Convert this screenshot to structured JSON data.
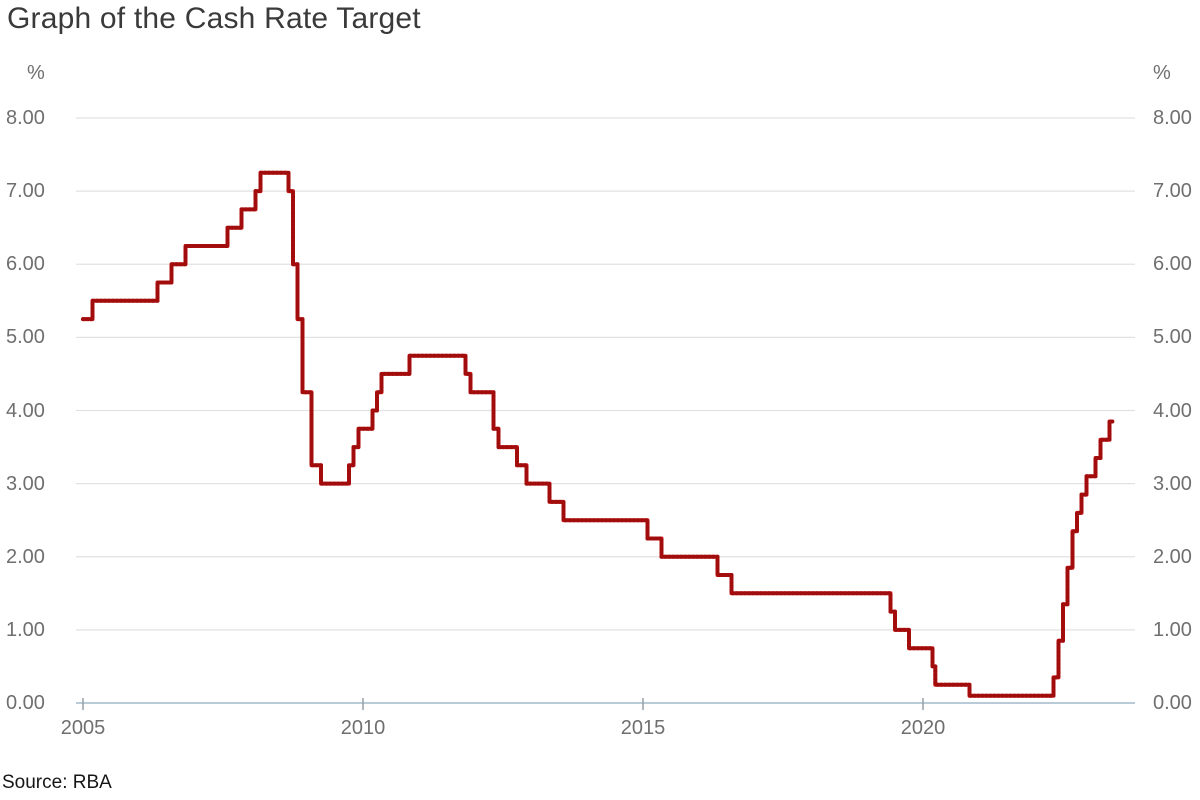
{
  "page": {
    "title": "Graph of the Cash Rate Target",
    "source": "Source: RBA"
  },
  "chart_data": {
    "type": "line",
    "title": "Graph of the Cash Rate Target",
    "subtitle": "",
    "interpolation": "step-after",
    "grid": "horizontal",
    "legend": "none",
    "colors": {
      "line": "#cb1515",
      "line_dots": "#9a0c0c",
      "grid": "#e2e2e2",
      "axis": "#b9cbd6",
      "tick": "#93a1a8",
      "tick_label": "#6f6f6f",
      "title": "#3a3a3a",
      "source": "#161616",
      "background": "#ffffff"
    },
    "y_axis": {
      "unit": "%",
      "tick_values": [
        8,
        7,
        6,
        5,
        4,
        3,
        2,
        1,
        0
      ],
      "tick_labels": [
        "8.00",
        "7.00",
        "6.00",
        "5.00",
        "4.00",
        "3.00",
        "2.00",
        "1.00",
        "0.00"
      ],
      "range": [
        0,
        8
      ],
      "sides": [
        "left",
        "right"
      ]
    },
    "x_axis": {
      "tick_values": [
        2005,
        2010,
        2015,
        2020
      ],
      "tick_labels": [
        "2005",
        "2010",
        "2015",
        "2020"
      ],
      "range": [
        2005.0,
        2023.8
      ]
    },
    "series": [
      {
        "name": "Cash Rate Target",
        "unit": "%",
        "x_end": 2023.38,
        "points": [
          [
            2005.0,
            5.25
          ],
          [
            2005.17,
            5.5
          ],
          [
            2006.33,
            5.75
          ],
          [
            2006.58,
            6.0
          ],
          [
            2006.83,
            6.25
          ],
          [
            2007.58,
            6.5
          ],
          [
            2007.83,
            6.75
          ],
          [
            2008.08,
            7.0
          ],
          [
            2008.17,
            7.25
          ],
          [
            2008.67,
            7.0
          ],
          [
            2008.75,
            6.0
          ],
          [
            2008.83,
            5.25
          ],
          [
            2008.92,
            4.25
          ],
          [
            2009.08,
            3.25
          ],
          [
            2009.25,
            3.0
          ],
          [
            2009.75,
            3.25
          ],
          [
            2009.83,
            3.5
          ],
          [
            2009.92,
            3.75
          ],
          [
            2010.17,
            4.0
          ],
          [
            2010.25,
            4.25
          ],
          [
            2010.33,
            4.5
          ],
          [
            2010.83,
            4.75
          ],
          [
            2011.83,
            4.5
          ],
          [
            2011.92,
            4.25
          ],
          [
            2012.33,
            3.75
          ],
          [
            2012.42,
            3.5
          ],
          [
            2012.75,
            3.25
          ],
          [
            2012.92,
            3.0
          ],
          [
            2013.33,
            2.75
          ],
          [
            2013.58,
            2.5
          ],
          [
            2015.08,
            2.25
          ],
          [
            2015.33,
            2.0
          ],
          [
            2016.33,
            1.75
          ],
          [
            2016.58,
            1.5
          ],
          [
            2019.42,
            1.25
          ],
          [
            2019.5,
            1.0
          ],
          [
            2019.75,
            0.75
          ],
          [
            2020.17,
            0.5
          ],
          [
            2020.22,
            0.25
          ],
          [
            2020.83,
            0.1
          ],
          [
            2022.33,
            0.35
          ],
          [
            2022.42,
            0.85
          ],
          [
            2022.5,
            1.35
          ],
          [
            2022.58,
            1.85
          ],
          [
            2022.67,
            2.35
          ],
          [
            2022.75,
            2.6
          ],
          [
            2022.83,
            2.85
          ],
          [
            2022.92,
            3.1
          ],
          [
            2023.08,
            3.35
          ],
          [
            2023.17,
            3.6
          ],
          [
            2023.33,
            3.85
          ]
        ]
      }
    ],
    "source": "Source: RBA"
  }
}
